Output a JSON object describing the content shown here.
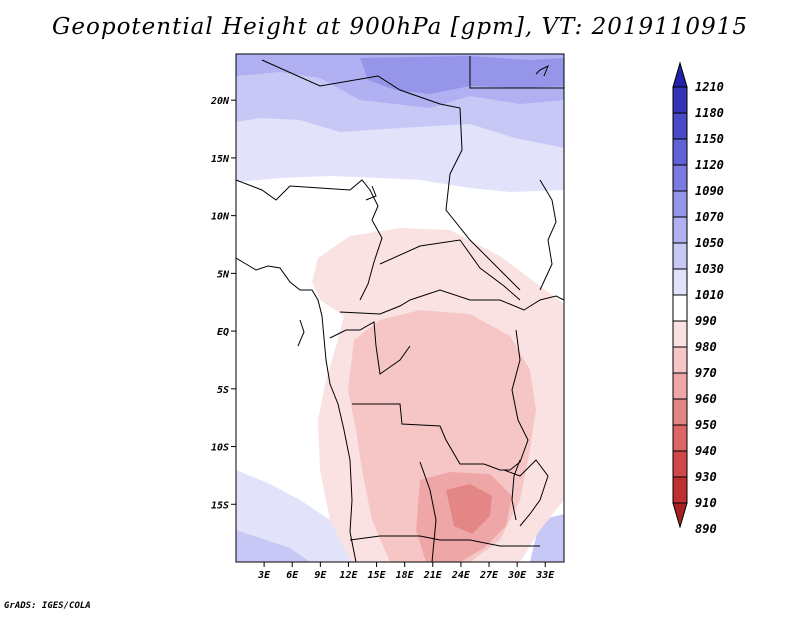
{
  "title": "Geopotential Height at 900hPa [gpm], VT: 2019110915",
  "credit": "GrADS: IGES/COLA",
  "map": {
    "region": "Central and southern-central Africa",
    "lon_range": [
      0,
      35
    ],
    "lat_range": [
      -20,
      24
    ],
    "lat_ticks": [
      {
        "value": 20,
        "label": "20N"
      },
      {
        "value": 15,
        "label": "15N"
      },
      {
        "value": 10,
        "label": "10N"
      },
      {
        "value": 5,
        "label": "5N"
      },
      {
        "value": 0,
        "label": "EQ"
      },
      {
        "value": -5,
        "label": "5S"
      },
      {
        "value": -10,
        "label": "10S"
      },
      {
        "value": -15,
        "label": "15S"
      }
    ],
    "lon_ticks": [
      {
        "value": 3,
        "label": "3E"
      },
      {
        "value": 6,
        "label": "6E"
      },
      {
        "value": 9,
        "label": "9E"
      },
      {
        "value": 12,
        "label": "12E"
      },
      {
        "value": 15,
        "label": "15E"
      },
      {
        "value": 18,
        "label": "18E"
      },
      {
        "value": 21,
        "label": "21E"
      },
      {
        "value": 24,
        "label": "24E"
      },
      {
        "value": 27,
        "label": "27E"
      },
      {
        "value": 30,
        "label": "30E"
      },
      {
        "value": 33,
        "label": "33E"
      }
    ]
  },
  "colorbar": {
    "levels": [
      {
        "label": "1210",
        "color": "#2222aa"
      },
      {
        "label": "1180",
        "color": "#3333b8"
      },
      {
        "label": "1150",
        "color": "#4a4ac8"
      },
      {
        "label": "1120",
        "color": "#6060d6"
      },
      {
        "label": "1090",
        "color": "#7a7ae0"
      },
      {
        "label": "1070",
        "color": "#9595ea"
      },
      {
        "label": "1050",
        "color": "#b0b0f2"
      },
      {
        "label": "1030",
        "color": "#c8c8f7"
      },
      {
        "label": "1010",
        "color": "#e2e2fb"
      },
      {
        "label": "990",
        "color": "#ffffff"
      },
      {
        "label": "980",
        "color": "#fbe2e2"
      },
      {
        "label": "970",
        "color": "#f6c6c6"
      },
      {
        "label": "960",
        "color": "#efa6a6"
      },
      {
        "label": "950",
        "color": "#e58686"
      },
      {
        "label": "940",
        "color": "#dc6666"
      },
      {
        "label": "930",
        "color": "#d04848"
      },
      {
        "label": "910",
        "color": "#c03030"
      },
      {
        "label": "890",
        "color": "#a82020"
      }
    ]
  }
}
